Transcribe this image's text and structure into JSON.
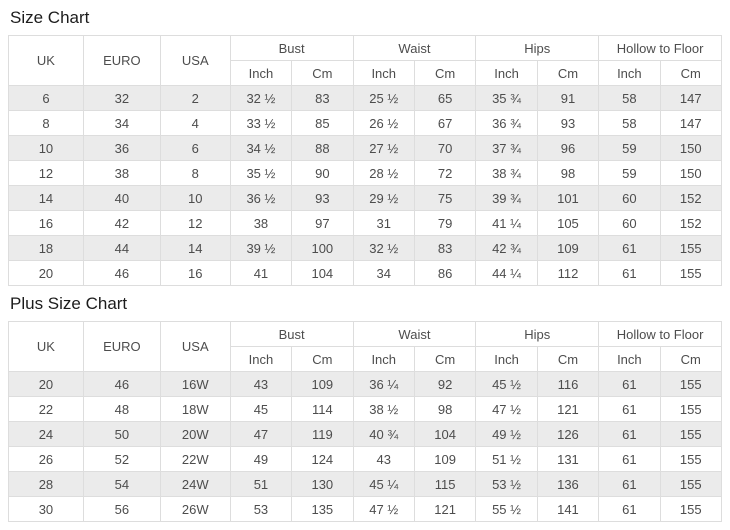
{
  "chart_data": [
    {
      "type": "table",
      "title": "Size Chart",
      "size_columns": [
        "UK",
        "EURO",
        "USA"
      ],
      "measure_groups": [
        "Bust",
        "Waist",
        "Hips",
        "Hollow to Floor"
      ],
      "units": [
        "Inch",
        "Cm"
      ],
      "rows": [
        [
          "6",
          "32",
          "2",
          "32 ½",
          "83",
          "25 ½",
          "65",
          "35 ¾",
          "91",
          "58",
          "147"
        ],
        [
          "8",
          "34",
          "4",
          "33 ½",
          "85",
          "26 ½",
          "67",
          "36 ¾",
          "93",
          "58",
          "147"
        ],
        [
          "10",
          "36",
          "6",
          "34 ½",
          "88",
          "27 ½",
          "70",
          "37 ¾",
          "96",
          "59",
          "150"
        ],
        [
          "12",
          "38",
          "8",
          "35 ½",
          "90",
          "28 ½",
          "72",
          "38 ¾",
          "98",
          "59",
          "150"
        ],
        [
          "14",
          "40",
          "10",
          "36 ½",
          "93",
          "29 ½",
          "75",
          "39 ¾",
          "101",
          "60",
          "152"
        ],
        [
          "16",
          "42",
          "12",
          "38",
          "97",
          "31",
          "79",
          "41 ¼",
          "105",
          "60",
          "152"
        ],
        [
          "18",
          "44",
          "14",
          "39 ½",
          "100",
          "32 ½",
          "83",
          "42 ¾",
          "109",
          "61",
          "155"
        ],
        [
          "20",
          "46",
          "16",
          "41",
          "104",
          "34",
          "86",
          "44 ¼",
          "112",
          "61",
          "155"
        ]
      ]
    },
    {
      "type": "table",
      "title": "Plus Size Chart",
      "size_columns": [
        "UK",
        "EURO",
        "USA"
      ],
      "measure_groups": [
        "Bust",
        "Waist",
        "Hips",
        "Hollow to Floor"
      ],
      "units": [
        "Inch",
        "Cm"
      ],
      "rows": [
        [
          "20",
          "46",
          "16W",
          "43",
          "109",
          "36 ¼",
          "92",
          "45 ½",
          "116",
          "61",
          "155"
        ],
        [
          "22",
          "48",
          "18W",
          "45",
          "114",
          "38 ½",
          "98",
          "47 ½",
          "121",
          "61",
          "155"
        ],
        [
          "24",
          "50",
          "20W",
          "47",
          "119",
          "40 ¾",
          "104",
          "49 ½",
          "126",
          "61",
          "155"
        ],
        [
          "26",
          "52",
          "22W",
          "49",
          "124",
          "43",
          "109",
          "51 ½",
          "131",
          "61",
          "155"
        ],
        [
          "28",
          "54",
          "24W",
          "51",
          "130",
          "45 ¼",
          "115",
          "53 ½",
          "136",
          "61",
          "155"
        ],
        [
          "30",
          "56",
          "26W",
          "53",
          "135",
          "47 ½",
          "121",
          "55 ½",
          "141",
          "61",
          "155"
        ]
      ]
    }
  ],
  "colors": {
    "row_alt": "#ebebeb",
    "border": "#dddddd",
    "text": "#4d4d4d",
    "title": "#1c1c1c",
    "background": "#ffffff"
  }
}
